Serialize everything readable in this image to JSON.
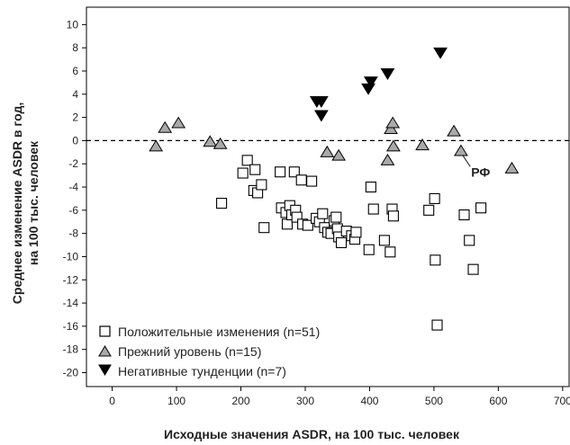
{
  "chart_data": {
    "type": "scatter",
    "xlabel": "Исходные значения ASDR, на 100 тыс. человек",
    "ylabel_line1": "Среднее изменение ASDR в год,",
    "ylabel_line2": "на 100 тыс. человек",
    "xlim": [
      -40,
      710
    ],
    "ylim": [
      -21.2,
      11.5
    ],
    "x_ticks": [
      0,
      100,
      200,
      300,
      400,
      500,
      600,
      700
    ],
    "y_ticks": [
      10,
      8,
      6,
      4,
      2,
      0,
      -2,
      -4,
      -6,
      -8,
      -10,
      -12,
      -14,
      -16,
      -18,
      -20
    ],
    "reference_line": {
      "y": 0,
      "style": "dashed"
    },
    "legend_position": "bottom-left",
    "annotation": {
      "text": "РФ",
      "x": 541,
      "y": -1.0
    },
    "series": [
      {
        "name": "Положительные изменения (n=51)",
        "marker": "square-open",
        "color": "#000000",
        "points": [
          [
            170,
            -5.4
          ],
          [
            203,
            -2.8
          ],
          [
            210,
            -1.7
          ],
          [
            220,
            -4.3
          ],
          [
            222,
            -2.5
          ],
          [
            226,
            -4.5
          ],
          [
            232,
            -3.8
          ],
          [
            236,
            -7.5
          ],
          [
            261,
            -2.7
          ],
          [
            263,
            -5.8
          ],
          [
            270,
            -6.2
          ],
          [
            272,
            -7.2
          ],
          [
            276,
            -5.6
          ],
          [
            279,
            -6.4
          ],
          [
            283,
            -2.7
          ],
          [
            285,
            -6.0
          ],
          [
            287,
            -6.6
          ],
          [
            294,
            -3.4
          ],
          [
            296,
            -7.2
          ],
          [
            304,
            -7.3
          ],
          [
            310,
            -3.5
          ],
          [
            317,
            -6.7
          ],
          [
            322,
            -7.0
          ],
          [
            327,
            -6.3
          ],
          [
            330,
            -7.5
          ],
          [
            335,
            -7.9
          ],
          [
            340,
            -8.0
          ],
          [
            345,
            -6.9
          ],
          [
            348,
            -6.6
          ],
          [
            350,
            -7.6
          ],
          [
            352,
            -8.3
          ],
          [
            356,
            -8.8
          ],
          [
            364,
            -7.8
          ],
          [
            372,
            -8.2
          ],
          [
            377,
            -8.5
          ],
          [
            379,
            -7.9
          ],
          [
            399,
            -9.4
          ],
          [
            402,
            -4.0
          ],
          [
            406,
            -5.9
          ],
          [
            423,
            -8.6
          ],
          [
            432,
            -9.6
          ],
          [
            435,
            -5.9
          ],
          [
            437,
            -6.5
          ],
          [
            492,
            -6.0
          ],
          [
            501,
            -5.0
          ],
          [
            502,
            -10.3
          ],
          [
            505,
            -15.9
          ],
          [
            547,
            -6.4
          ],
          [
            555,
            -8.6
          ],
          [
            561,
            -11.1
          ],
          [
            573,
            -5.8
          ]
        ]
      },
      {
        "name": "Прежний уровень (n=15)",
        "marker": "triangle-up",
        "color": "#a9a9a9",
        "points": [
          [
            68,
            -0.5
          ],
          [
            82,
            1.1
          ],
          [
            103,
            1.5
          ],
          [
            152,
            -0.1
          ],
          [
            168,
            -0.3
          ],
          [
            334,
            -1.0
          ],
          [
            352,
            -1.3
          ],
          [
            428,
            -1.7
          ],
          [
            433,
            1.0
          ],
          [
            436,
            1.5
          ],
          [
            437,
            -0.5
          ],
          [
            482,
            -0.4
          ],
          [
            531,
            0.8
          ],
          [
            542,
            -0.9
          ],
          [
            621,
            -2.4
          ]
        ]
      },
      {
        "name": "Негативные тунденции (n=7)",
        "marker": "triangle-down",
        "color": "#000000",
        "points": [
          [
            318,
            3.4
          ],
          [
            325,
            3.4
          ],
          [
            325,
            2.2
          ],
          [
            398,
            4.5
          ],
          [
            402,
            5.1
          ],
          [
            428,
            5.8
          ],
          [
            510,
            7.6
          ]
        ]
      }
    ]
  }
}
